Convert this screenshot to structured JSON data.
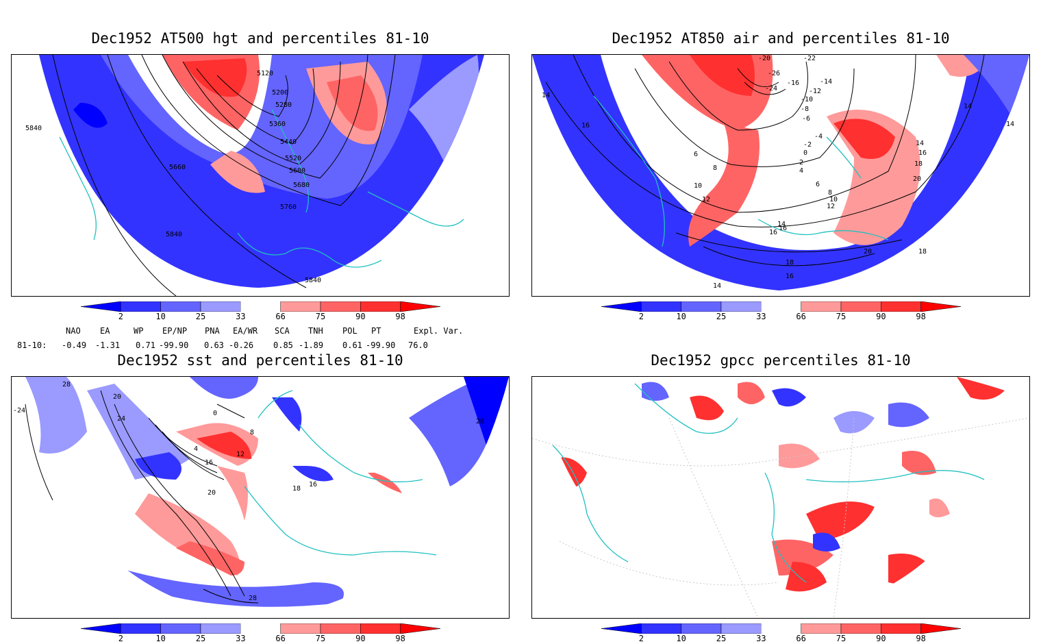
{
  "panels": [
    {
      "title": "Dec1952 AT500 hgt and percentiles 81-10",
      "contour_labels": [
        "5120",
        "5200",
        "5280",
        "5360",
        "5440",
        "5520",
        "5600",
        "5680",
        "5760",
        "5660",
        "5840",
        "5840",
        "5840"
      ]
    },
    {
      "title": "Dec1952 AT850 air and percentiles 81-10",
      "contour_labels": [
        "-20",
        "-22",
        "-26",
        "-24",
        "-16",
        "-12",
        "-14",
        "-10",
        "-8",
        "-6",
        "-4",
        "-2",
        "0",
        "2",
        "4",
        "6",
        "8",
        "10",
        "12",
        "14",
        "16",
        "18",
        "20",
        "14",
        "16",
        "6",
        "8",
        "10",
        "12",
        "14",
        "16",
        "18",
        "20",
        "18",
        "16",
        "14",
        "14",
        "14",
        "16"
      ]
    },
    {
      "title": "Dec1952 sst and percentiles 81-10",
      "contour_labels": [
        "28",
        "-24",
        "20",
        "24",
        "0",
        "4",
        "8",
        "12",
        "16",
        "20",
        "18",
        "16",
        "28",
        "28"
      ]
    },
    {
      "title": "Dec1952 gpcc percentiles 81-10",
      "contour_labels": []
    }
  ],
  "colorbar": {
    "ticks": [
      "2",
      "10",
      "25",
      "33",
      "66",
      "75",
      "90",
      "98"
    ],
    "colors": [
      "#0000ff",
      "#3333ff",
      "#6464ff",
      "#9a9aff",
      "#ffffff",
      "#ff9a9a",
      "#ff6464",
      "#ff3030",
      "#ff0000"
    ]
  },
  "indices": {
    "headers": [
      "NAO",
      "EA",
      "WP",
      "EP/NP",
      "PNA",
      "EA/WR",
      "SCA",
      "TNH",
      "POL",
      "PT",
      "Expl. Var."
    ],
    "row_label": "81-10:",
    "values": [
      "-0.49",
      "-1.31",
      "0.71",
      "-99.90",
      "0.63",
      "-0.26",
      "0.85",
      "-1.89",
      "0.61",
      "-99.90",
      "76.0"
    ]
  }
}
